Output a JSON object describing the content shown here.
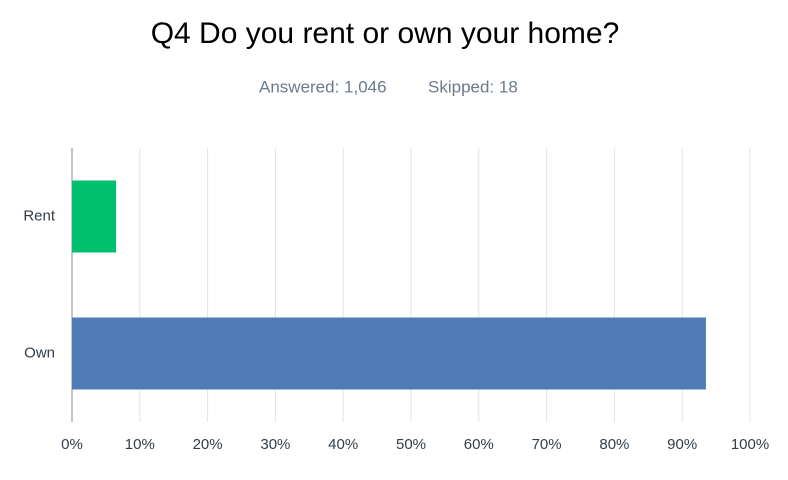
{
  "chart_data": {
    "type": "hbar",
    "title": "Q4 Do you rent or own your home?",
    "answered": "Answered: 1,046",
    "skipped": "Skipped: 18",
    "categories": [
      "Rent",
      "Own"
    ],
    "values": [
      6.5,
      93.5
    ],
    "colors": [
      "#00bf6f",
      "#507cb6"
    ],
    "xlim": [
      0,
      100
    ],
    "xticks": [
      {
        "value": 0,
        "label": "0%"
      },
      {
        "value": 10,
        "label": "10%"
      },
      {
        "value": 20,
        "label": "20%"
      },
      {
        "value": 30,
        "label": "30%"
      },
      {
        "value": 40,
        "label": "40%"
      },
      {
        "value": 50,
        "label": "50%"
      },
      {
        "value": 60,
        "label": "60%"
      },
      {
        "value": 70,
        "label": "70%"
      },
      {
        "value": 80,
        "label": "80%"
      },
      {
        "value": 90,
        "label": "90%"
      },
      {
        "value": 100,
        "label": "100%"
      }
    ],
    "grid": true
  }
}
